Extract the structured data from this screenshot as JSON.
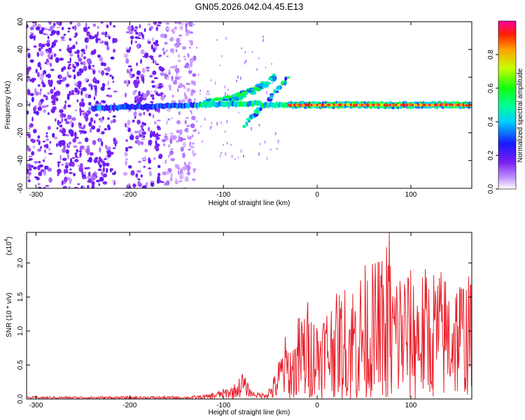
{
  "figure_title": "GN05.2026.042.04.45.E13",
  "chart_data": [
    {
      "type": "heatmap",
      "xlabel": "Height of straight line (km)",
      "ylabel": "Frequency (Hz)",
      "xlim": [
        -310,
        165
      ],
      "ylim": [
        -60,
        60
      ],
      "xticks": [
        -300,
        -200,
        -100,
        0,
        100
      ],
      "yticks": [
        -60,
        -40,
        -20,
        0,
        20,
        40,
        60
      ],
      "grid": false,
      "colorbar": {
        "label": "Normalized spectral amplitude",
        "range": [
          0,
          1
        ],
        "ticks": [
          0.0,
          0.2,
          0.4,
          0.6,
          0.8
        ]
      },
      "features": {
        "noise_band_x": [
          -310,
          -130
        ],
        "noise_gap_x": [
          -215,
          -205
        ],
        "line_x": [
          -240,
          165
        ],
        "line_frequency": 0,
        "rising_arc": {
          "from": [
            -120,
            2
          ],
          "to": [
            -45,
            20
          ]
        },
        "falling_branch": {
          "from": [
            -78,
            -15
          ],
          "to": [
            -30,
            20
          ]
        },
        "strong_line_x": [
          -30,
          165
        ]
      }
    },
    {
      "type": "line",
      "xlabel": "Height of straight line (km)",
      "ylabel": "SNR (10 * v/v)",
      "multiplier_label": "(x10",
      "multiplier_exponent": "4",
      "multiplier_close": ")",
      "xlim": [
        -310,
        165
      ],
      "ylim": [
        0,
        2.45
      ],
      "xticks": [
        -300,
        -200,
        -100,
        0,
        100
      ],
      "yticks": [
        0.0,
        0.5,
        1.0,
        1.5,
        2.0
      ],
      "grid": false,
      "series": [
        {
          "name": "SNR",
          "color": "#e8202a",
          "profile": {
            "x": [
              -310,
              -200,
              -140,
              -120,
              -110,
              -100,
              -90,
              -85,
              -80,
              -75,
              -70,
              -65,
              -60,
              -55,
              -50,
              -45,
              -40,
              -35,
              -30,
              -25,
              -20,
              -15,
              -10,
              -5,
              0,
              10,
              20,
              30,
              40,
              50,
              60,
              70,
              75,
              80,
              90,
              100,
              110,
              120,
              130,
              140,
              150,
              160,
              165
            ],
            "mean": [
              0.02,
              0.02,
              0.02,
              0.03,
              0.05,
              0.08,
              0.1,
              0.14,
              0.22,
              0.15,
              0.08,
              0.06,
              0.05,
              0.06,
              0.1,
              0.18,
              0.3,
              0.45,
              0.38,
              0.35,
              0.55,
              0.62,
              0.68,
              0.6,
              0.6,
              0.7,
              0.75,
              0.8,
              0.85,
              0.9,
              0.92,
              0.95,
              1.0,
              0.9,
              0.95,
              0.92,
              0.9,
              0.95,
              0.95,
              0.9,
              0.92,
              0.9,
              0.9
            ],
            "amplitude": [
              0.015,
              0.02,
              0.02,
              0.03,
              0.05,
              0.07,
              0.1,
              0.12,
              0.2,
              0.12,
              0.05,
              0.04,
              0.04,
              0.05,
              0.12,
              0.2,
              0.35,
              0.5,
              0.5,
              0.5,
              0.7,
              0.75,
              0.8,
              0.65,
              0.65,
              0.7,
              0.8,
              0.9,
              0.95,
              1.1,
              1.1,
              1.2,
              1.45,
              1.1,
              1.1,
              1.0,
              1.0,
              1.05,
              1.0,
              0.95,
              0.95,
              0.95,
              0.9
            ]
          },
          "max_value": 2.45,
          "max_at_x": 77
        }
      ]
    }
  ]
}
